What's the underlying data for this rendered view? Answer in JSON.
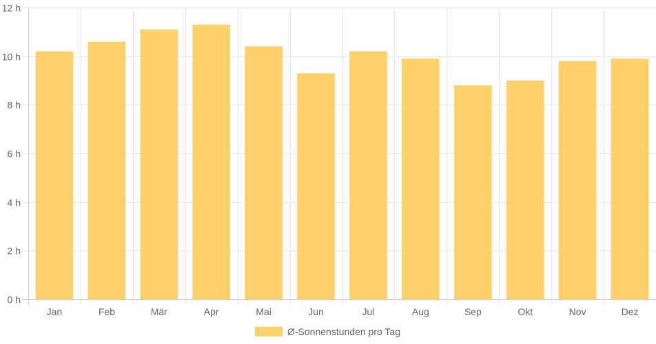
{
  "chart_data": {
    "type": "bar",
    "categories": [
      "Jan",
      "Feb",
      "Mär",
      "Apr",
      "Mai",
      "Jun",
      "Jul",
      "Aug",
      "Sep",
      "Okt",
      "Nov",
      "Dez"
    ],
    "series": [
      {
        "name": "Ø-Sonnenstunden pro Tag",
        "values": [
          10.2,
          10.6,
          11.1,
          11.3,
          10.4,
          9.3,
          10.2,
          9.9,
          8.8,
          9.0,
          9.8,
          9.9
        ]
      }
    ],
    "y_tick_labels": [
      "0 h",
      "2 h",
      "4 h",
      "6 h",
      "8 h",
      "10 h",
      "12 h"
    ],
    "ylim": [
      0,
      12
    ],
    "y_unit_suffix": " h",
    "grid": true,
    "legend_position": "bottom",
    "bar_color": "#fdd06a",
    "grid_color": "#e6e6e6",
    "axis_color": "#cccccc",
    "text_color": "#666666"
  }
}
